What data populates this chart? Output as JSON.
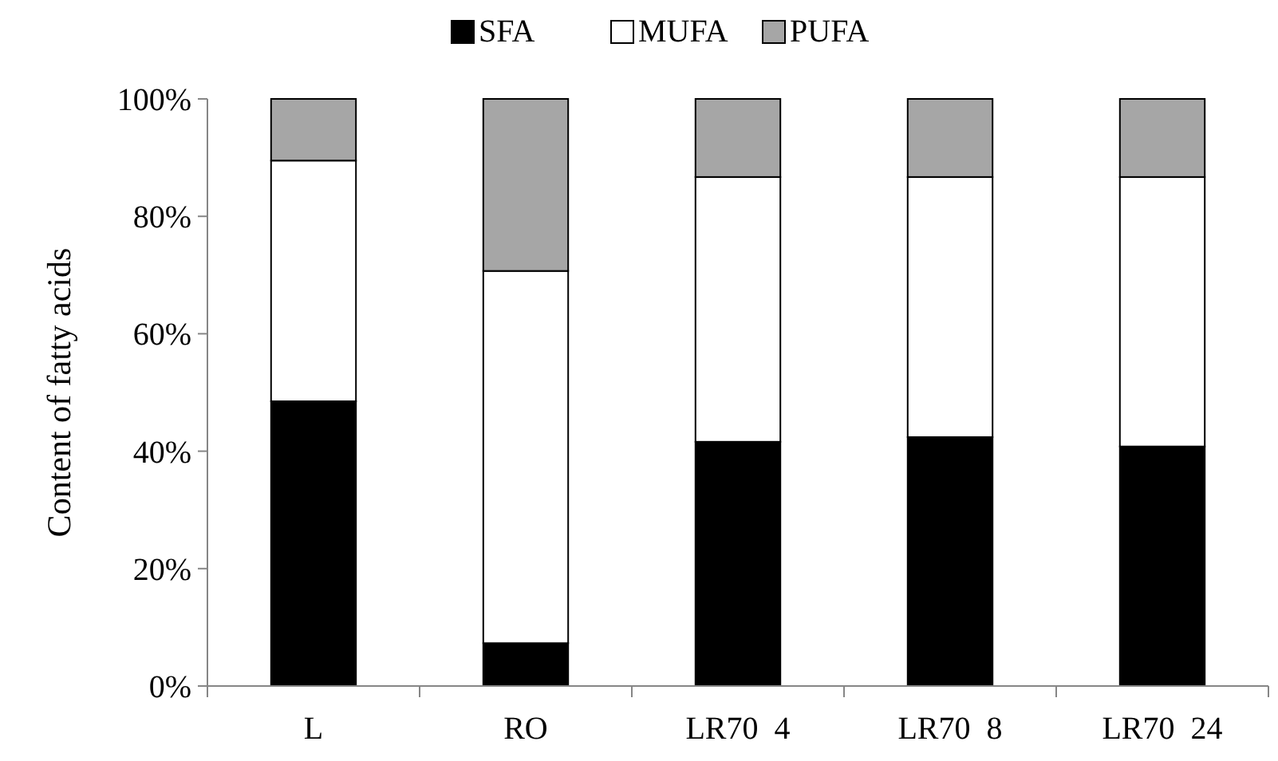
{
  "chart_data": {
    "type": "bar",
    "stacked": true,
    "ylabel": "Content of fatty acids",
    "categories": [
      "L",
      "RO",
      "LR70  4",
      "LR70  8",
      "LR70  24"
    ],
    "series": [
      {
        "name": "SFA",
        "color": "#000000",
        "values": [
          48.5,
          7.3,
          41.6,
          42.4,
          40.8
        ]
      },
      {
        "name": "MUFA",
        "color": "#ffffff",
        "values": [
          41.0,
          63.4,
          45.1,
          44.3,
          45.9
        ]
      },
      {
        "name": "PUFA",
        "color": "#a6a6a6",
        "values": [
          10.5,
          29.3,
          13.3,
          13.3,
          13.3
        ]
      }
    ],
    "ylim": [
      0,
      100
    ],
    "yticks": [
      {
        "value": 0,
        "label": "0%"
      },
      {
        "value": 20,
        "label": "20%"
      },
      {
        "value": 40,
        "label": "40%"
      },
      {
        "value": 60,
        "label": "60%"
      },
      {
        "value": 80,
        "label": "80%"
      },
      {
        "value": 100,
        "label": "100%"
      }
    ],
    "grid": false,
    "legend": "top"
  }
}
